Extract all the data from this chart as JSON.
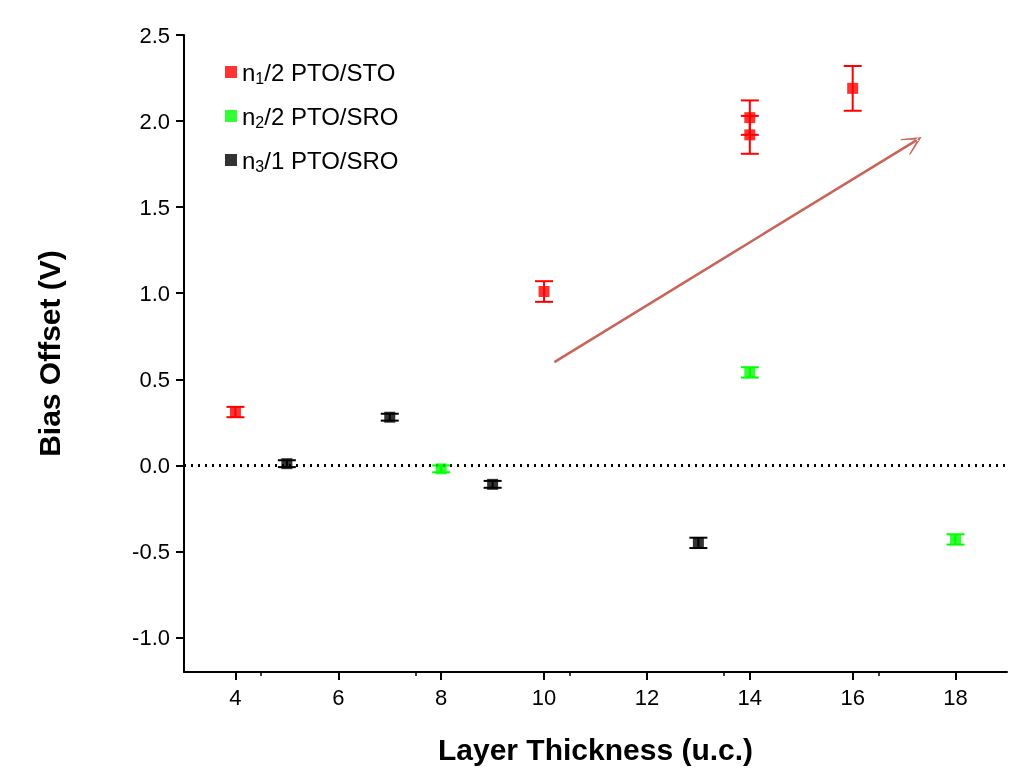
{
  "chart_data": {
    "type": "scatter",
    "xlabel": "Layer Thickness (u.c.)",
    "ylabel": "Bias Offset (V)",
    "xlim": [
      3,
      19
    ],
    "xticks": [
      4,
      6,
      8,
      10,
      12,
      14,
      16,
      18
    ],
    "ylim": [
      -1.2,
      2.5
    ],
    "yticks": [
      {
        "value": -1,
        "label": "-1.0"
      },
      {
        "value": -0.5,
        "label": "-0.5"
      },
      {
        "value": 0,
        "label": "0.0"
      },
      {
        "value": 0.5,
        "label": "0.5"
      },
      {
        "value": 1,
        "label": "1.0"
      },
      {
        "value": 1.5,
        "label": "1.5"
      },
      {
        "value": 2,
        "label": "2.0"
      },
      {
        "value": 2.5,
        "label": "2.5"
      }
    ],
    "marker": "square",
    "legend": "top left",
    "grid": false,
    "ref_lines": [
      {
        "axis": "y",
        "value": 0,
        "color": "#000000",
        "line_style": "dotted"
      }
    ],
    "series": [
      {
        "name": "n$_{1}$/2 PTO/STO",
        "color": "#ff0000",
        "x": [
          4,
          10,
          14,
          14,
          16
        ],
        "values": [
          0.31,
          1.01,
          1.92,
          2.02,
          2.19
        ],
        "errors": [
          0.03,
          0.06,
          0.11,
          0.1,
          0.13
        ]
      },
      {
        "name": "n$_{2}$/2 PTO/SRO",
        "color": "#00ff00",
        "x": [
          8,
          14,
          18
        ],
        "values": [
          -0.02,
          0.54,
          -0.43
        ],
        "errors": [
          0.02,
          0.03,
          0.03
        ]
      },
      {
        "name": "n$_{3}$/1 PTO/SRO",
        "color": "#000000",
        "x": [
          5,
          7,
          9,
          13
        ],
        "values": [
          0.01,
          0.28,
          -0.11,
          -0.45
        ],
        "errors": [
          0.02,
          0.02,
          0.02,
          0.03
        ]
      }
    ]
  }
}
